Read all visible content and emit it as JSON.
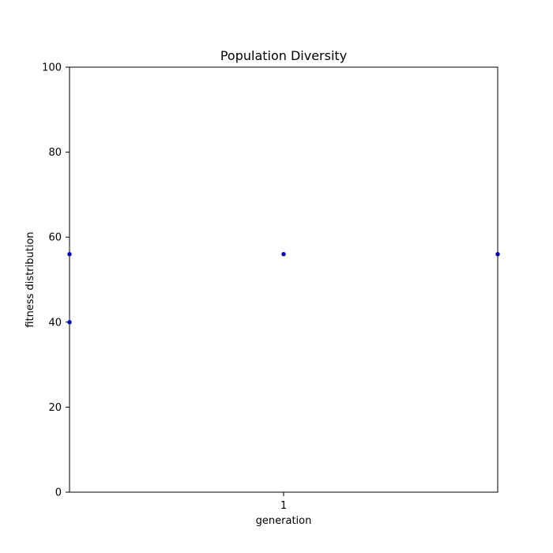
{
  "chart_data": {
    "type": "scatter",
    "title": "Population Diversity",
    "xlabel": "generation",
    "ylabel": "fitness distribution",
    "xlim": [
      0.5,
      1.5
    ],
    "ylim": [
      0,
      100
    ],
    "x_ticks": [
      1
    ],
    "x_tick_labels": [
      "1"
    ],
    "y_ticks": [
      0,
      20,
      40,
      60,
      80,
      100
    ],
    "y_tick_labels": [
      "0",
      "20",
      "40",
      "60",
      "80",
      "100"
    ],
    "grid": false,
    "legend": "none",
    "marker_color": "#0000cc",
    "series": [
      {
        "points": [
          {
            "x": 0.5,
            "y": 56
          },
          {
            "x": 0.5,
            "y": 40
          },
          {
            "x": 1.0,
            "y": 56
          },
          {
            "x": 1.5,
            "y": 56
          }
        ]
      }
    ]
  }
}
